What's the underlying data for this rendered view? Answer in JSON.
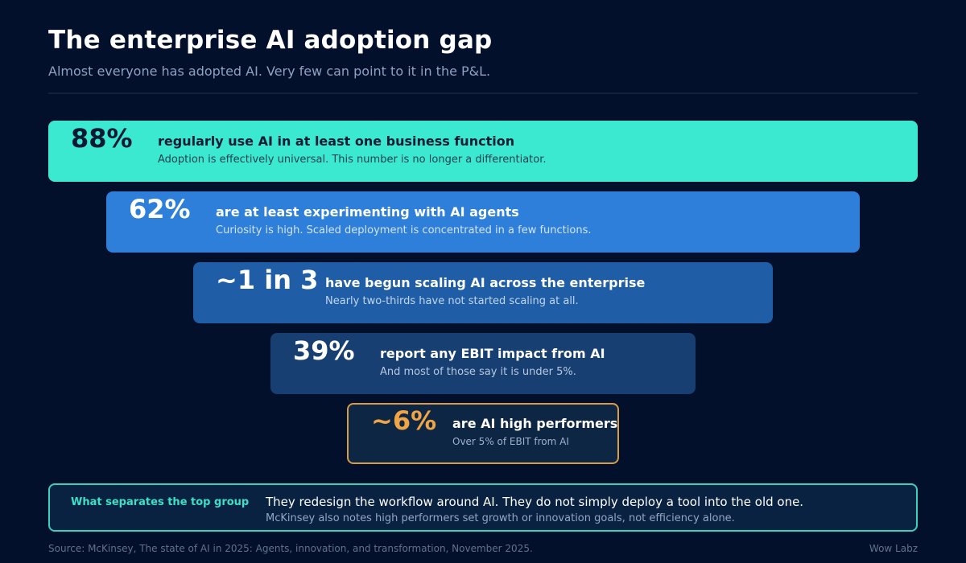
{
  "header": {
    "title": "The enterprise AI adoption gap",
    "subtitle": "Almost everyone has adopted AI. Very few can point to it in the P&L."
  },
  "tiers": [
    {
      "stat": "88%",
      "headline": "regularly use AI in at least one business function",
      "description": "Adoption is effectively universal. This number is no longer a differentiator.",
      "color": "#3be8d0"
    },
    {
      "stat": "62%",
      "headline": "are at least experimenting with AI agents",
      "description": "Curiosity is high. Scaled deployment is concentrated in a few functions.",
      "color": "#2e7fd9"
    },
    {
      "stat": "~1 in 3",
      "headline": "have begun scaling AI across the enterprise",
      "description": "Nearly two-thirds have not started scaling at all.",
      "color": "#1f5ea6"
    },
    {
      "stat": "39%",
      "headline": "report any EBIT impact from AI",
      "description": "And most of those say it is under 5%.",
      "color": "#183f72"
    },
    {
      "stat": "~6%",
      "headline": "are AI high performers",
      "description": "Over 5% of EBIT from AI",
      "color": "#0d2644",
      "accent": "#f0a446"
    }
  ],
  "callout": {
    "label": "What separates the top group",
    "main": "They redesign the workflow around AI. They do not simply deploy a tool into the old one.",
    "note": "McKinsey also notes high performers set growth or innovation goals, not efficiency alone."
  },
  "footer": {
    "source": "Source: McKinsey, The state of AI in 2025: Agents, innovation, and transformation, November 2025.",
    "brand": "Wow Labz"
  }
}
